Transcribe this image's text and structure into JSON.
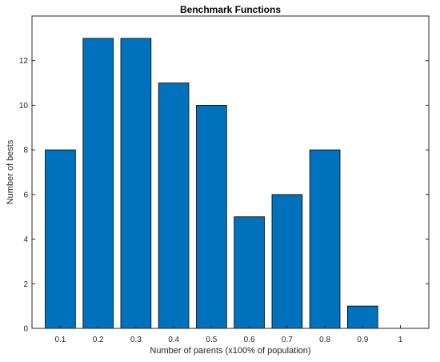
{
  "chart_data": {
    "type": "bar",
    "title": "Benchmark Functions",
    "xlabel": "Number of parents (x100% of population)",
    "ylabel": "Number of bests",
    "categories": [
      "0.1",
      "0.2",
      "0.3",
      "0.4",
      "0.5",
      "0.6",
      "0.7",
      "0.8",
      "0.9",
      "1"
    ],
    "values": [
      8,
      13,
      13,
      11,
      10,
      5,
      6,
      8,
      1,
      0
    ],
    "ylim": [
      0,
      14
    ],
    "yticks": [
      0,
      2,
      4,
      6,
      8,
      10,
      12
    ],
    "grid": false,
    "colors": {
      "bar_fill": "#0072BD",
      "bar_edge": "#000000",
      "axes": "#262626",
      "background": "#ffffff"
    }
  }
}
